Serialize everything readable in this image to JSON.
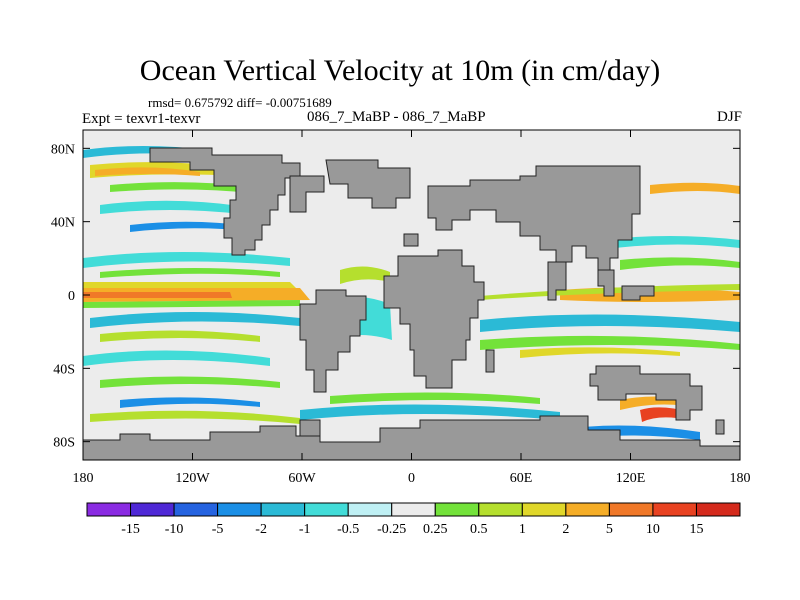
{
  "chart_data": {
    "type": "heatmap",
    "title": "Ocean Vertical Velocity at 10m (in cm/day)",
    "stats": "rmsd= 0.675792 diff= -0.00751689",
    "left_label": "Expt = texvr1-texvr",
    "center_label": "086_7_MaBP - 086_7_MaBP",
    "right_label": "DJF",
    "x_ticks": [
      "180",
      "120W",
      "60W",
      "0",
      "60E",
      "120E",
      "180"
    ],
    "x_range": [
      -180,
      180
    ],
    "y_ticks": [
      "80N",
      "40N",
      "0",
      "40S",
      "80S"
    ],
    "y_range": [
      -90,
      90
    ],
    "colorbar": {
      "levels": [
        "-15",
        "-10",
        "-5",
        "-2",
        "-1",
        "-0.5",
        "-0.25",
        "0.25",
        "0.5",
        "1",
        "2",
        "5",
        "10",
        "15"
      ],
      "colors": [
        "#8a2be2",
        "#4f28d6",
        "#2563e0",
        "#1b8fe6",
        "#2bbad6",
        "#42dcd8",
        "#bff0f4",
        "#ececec",
        "#73e23a",
        "#b5df2e",
        "#e0d72a",
        "#f5ad27",
        "#f07828",
        "#e84221",
        "#d42a1c"
      ]
    },
    "land_color": "#999999"
  }
}
